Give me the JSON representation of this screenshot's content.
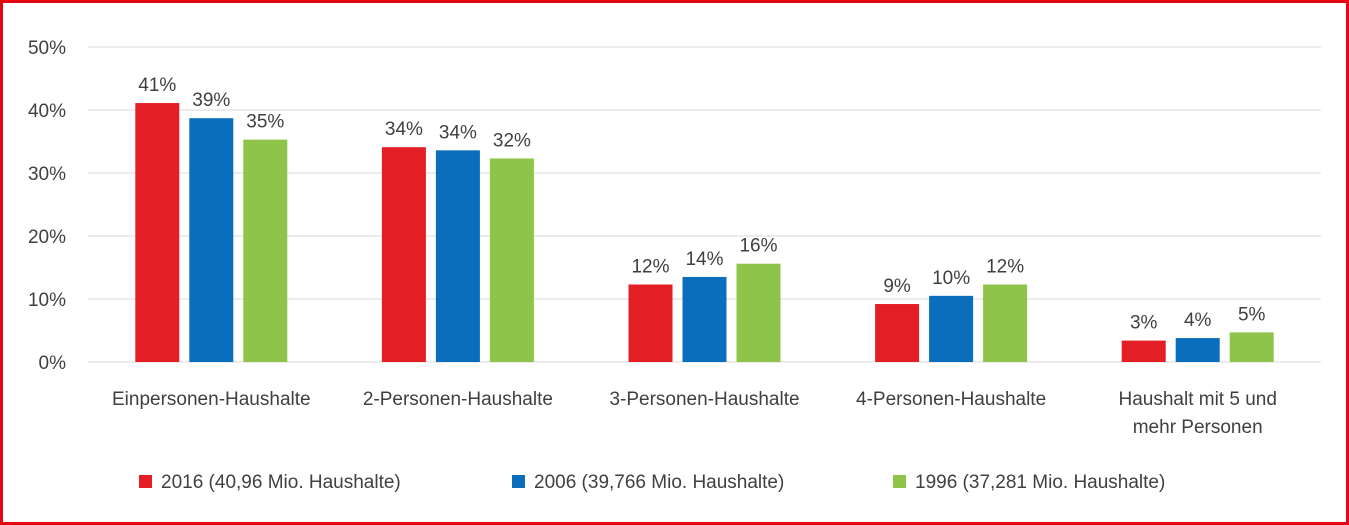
{
  "chart_data": {
    "type": "bar",
    "categories": [
      [
        "Einpersonen-Haushalte"
      ],
      [
        "2-Personen-Haushalte"
      ],
      [
        "3-Personen-Haushalte"
      ],
      [
        "4-Personen-Haushalte"
      ],
      [
        "Haushalt mit 5 und",
        "mehr Personen"
      ]
    ],
    "series": [
      {
        "name": "2016 (40,96 Mio. Haushalte)",
        "color": "#e31e24",
        "values": [
          41.1,
          34.1,
          12.3,
          9.2,
          3.4
        ],
        "labels": [
          "41%",
          "34%",
          "12%",
          "9%",
          "3%"
        ]
      },
      {
        "name": "2006 (39,766 Mio. Haushalte)",
        "color": "#0a6ebd",
        "values": [
          38.7,
          33.6,
          13.5,
          10.5,
          3.8
        ],
        "labels": [
          "39%",
          "34%",
          "14%",
          "10%",
          "4%"
        ]
      },
      {
        "name": "1996 (37,281 Mio. Haushalte)",
        "color": "#8dc449",
        "values": [
          35.3,
          32.3,
          15.6,
          12.3,
          4.7
        ],
        "labels": [
          "35%",
          "32%",
          "16%",
          "12%",
          "5%"
        ]
      }
    ],
    "yticks": [
      "0%",
      "10%",
      "20%",
      "30%",
      "40%",
      "50%"
    ],
    "ylim": [
      0,
      50
    ],
    "grid": true,
    "legend_position": "bottom",
    "title": "",
    "xlabel": "",
    "ylabel": ""
  }
}
